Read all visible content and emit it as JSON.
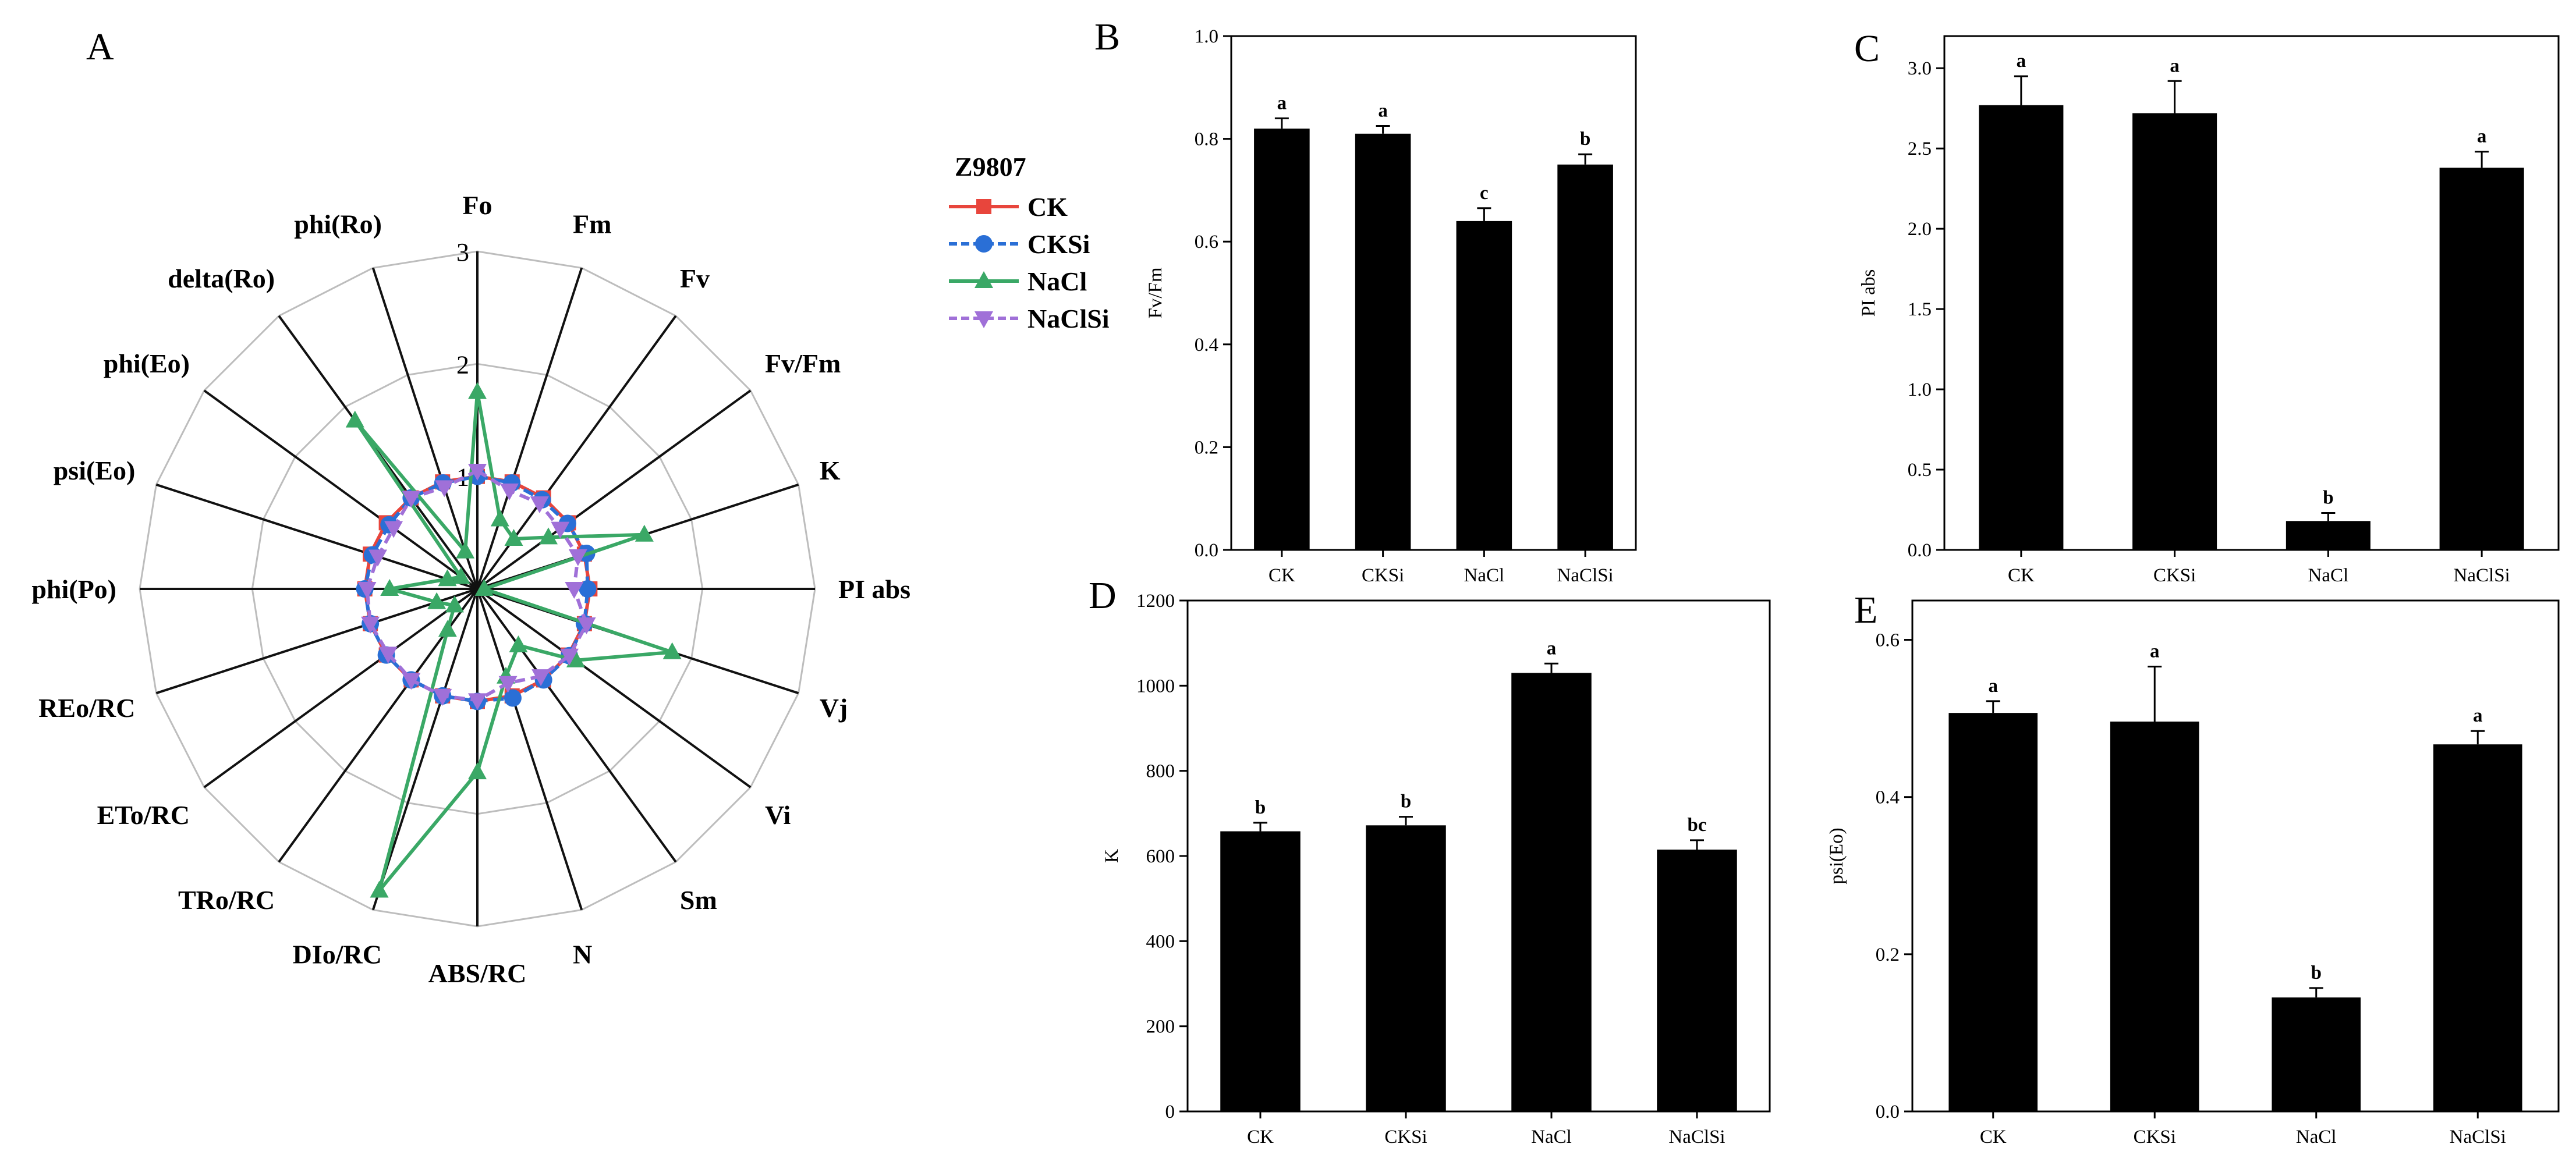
{
  "chart_data": [
    {
      "panel": "A",
      "type": "radar",
      "title": "",
      "axes": [
        "Fo",
        "Fm",
        "Fv",
        "Fv/Fm",
        "K",
        "PI abs",
        "Vj",
        "Vi",
        "Sm",
        "N",
        "ABS/RC",
        "DIo/RC",
        "TRo/RC",
        "ETo/RC",
        "REo/RC",
        "phi(Po)",
        "psi(Eo)",
        "phi(Eo)",
        "delta(Ro)",
        "phi(Ro)"
      ],
      "range": [
        0,
        3
      ],
      "ring_labels": [
        "1",
        "2",
        "3"
      ],
      "legend_title": "Z9807",
      "series": [
        {
          "name": "CK",
          "color": "#e8453c",
          "marker": "square",
          "values": [
            1.0,
            1.0,
            1.0,
            1.0,
            1.0,
            1.0,
            1.0,
            1.0,
            1.0,
            1.0,
            1.0,
            1.0,
            1.0,
            1.0,
            1.0,
            1.0,
            1.0,
            1.0,
            1.0,
            1.0
          ]
        },
        {
          "name": "CKSi",
          "color": "#2a6fd6",
          "marker": "circle",
          "values": [
            1.0,
            0.99,
            0.98,
            0.99,
            1.02,
            0.98,
            1.0,
            1.01,
            1.0,
            1.02,
            1.0,
            1.0,
            1.0,
            1.0,
            1.0,
            1.0,
            0.98,
            0.97,
            1.0,
            0.99
          ]
        },
        {
          "name": "NaCl",
          "color": "#3aa866",
          "marker": "triangle-up",
          "values": [
            1.75,
            0.65,
            0.55,
            0.78,
            1.56,
            0.06,
            1.82,
            1.08,
            0.62,
            0.82,
            1.63,
            2.82,
            0.45,
            0.25,
            0.38,
            0.78,
            0.28,
            0.18,
            1.85,
            0.35
          ]
        },
        {
          "name": "NaClSi",
          "color": "#a070d8",
          "marker": "triangle-down",
          "values": [
            1.05,
            0.92,
            0.94,
            0.91,
            0.94,
            0.86,
            1.02,
            1.01,
            0.96,
            0.88,
            0.99,
            1.0,
            1.0,
            0.98,
            1.0,
            0.98,
            0.93,
            0.92,
            1.0,
            0.95
          ]
        }
      ]
    },
    {
      "panel": "B",
      "type": "bar",
      "categories": [
        "CK",
        "CKSi",
        "NaCl",
        "NaClSi"
      ],
      "values": [
        0.82,
        0.81,
        0.64,
        0.75
      ],
      "errors": [
        0.02,
        0.015,
        0.025,
        0.02
      ],
      "labels": [
        "a",
        "a",
        "c",
        "b"
      ],
      "ylabel": "Fv/Fm",
      "ylim": [
        0,
        1.0
      ],
      "yticks": [
        "0.0",
        "0.2",
        "0.4",
        "0.6",
        "0.8",
        "1.0"
      ]
    },
    {
      "panel": "C",
      "type": "bar",
      "categories": [
        "CK",
        "CKSi",
        "NaCl",
        "NaClSi"
      ],
      "values": [
        2.77,
        2.72,
        0.18,
        2.38
      ],
      "errors": [
        0.18,
        0.2,
        0.05,
        0.1
      ],
      "labels": [
        "a",
        "a",
        "b",
        "a"
      ],
      "ylabel": "PI abs",
      "ylim": [
        0,
        3.2
      ],
      "yticks": [
        "0.0",
        "0.5",
        "1.0",
        "1.5",
        "2.0",
        "2.5",
        "3.0"
      ]
    },
    {
      "panel": "D",
      "type": "bar",
      "categories": [
        "CK",
        "CKSi",
        "NaCl",
        "NaClSi"
      ],
      "values": [
        658,
        672,
        1030,
        615
      ],
      "errors": [
        20,
        20,
        22,
        22
      ],
      "labels": [
        "b",
        "b",
        "a",
        "bc"
      ],
      "ylabel": "K",
      "ylim": [
        0,
        1200
      ],
      "yticks": [
        "0",
        "200",
        "400",
        "600",
        "800",
        "1000",
        "1200"
      ]
    },
    {
      "panel": "E",
      "type": "bar",
      "categories": [
        "CK",
        "CKSi",
        "NaCl",
        "NaClSi"
      ],
      "values": [
        0.507,
        0.496,
        0.145,
        0.467
      ],
      "errors": [
        0.015,
        0.07,
        0.012,
        0.017
      ],
      "labels": [
        "a",
        "a",
        "b",
        "a"
      ],
      "ylabel": "psi(Eo)",
      "ylim": [
        0,
        0.65
      ],
      "yticks": [
        "0.0",
        "0.2",
        "0.4",
        "0.6"
      ]
    }
  ]
}
